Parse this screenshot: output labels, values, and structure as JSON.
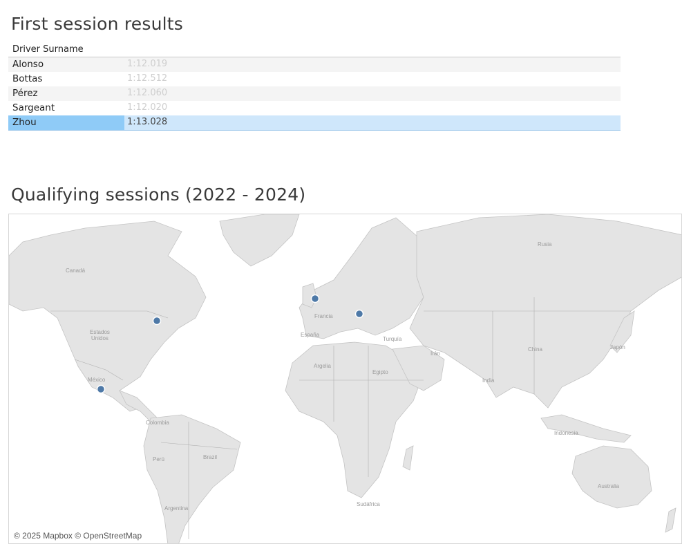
{
  "results": {
    "title": "First session results",
    "column_header": "Driver Surname",
    "rows": [
      {
        "driver": "Alonso",
        "time": "1:12.019"
      },
      {
        "driver": "Bottas",
        "time": "1:12.512"
      },
      {
        "driver": "Pérez",
        "time": "1:12.060"
      },
      {
        "driver": "Sargeant",
        "time": "1:12.020"
      },
      {
        "driver": "Zhou",
        "time": "1:13.028"
      }
    ],
    "selected_driver": "Zhou"
  },
  "map_section": {
    "title": "Qualifying sessions (2022 - 2024)",
    "attribution": "© 2025 Mapbox © OpenStreetMap",
    "labels": {
      "rusia": "Rusia",
      "canada": "Canadá",
      "estados_unidos": "Estados\nUnidos",
      "mexico": "México",
      "francia": "Francia",
      "espana": "España",
      "turquia": "Turquía",
      "argelia": "Argelia",
      "egipto": "Egipto",
      "iran": "Irán",
      "india": "India",
      "china": "China",
      "japon": "Japón",
      "colombia": "Colombia",
      "peru": "Perú",
      "brazil": "Brazil",
      "argentina": "Argentina",
      "indonesia": "Indonesia",
      "australia": "Australia",
      "sudafrica": "Sudáfrica"
    },
    "marker_color": "#4e79a7"
  }
}
